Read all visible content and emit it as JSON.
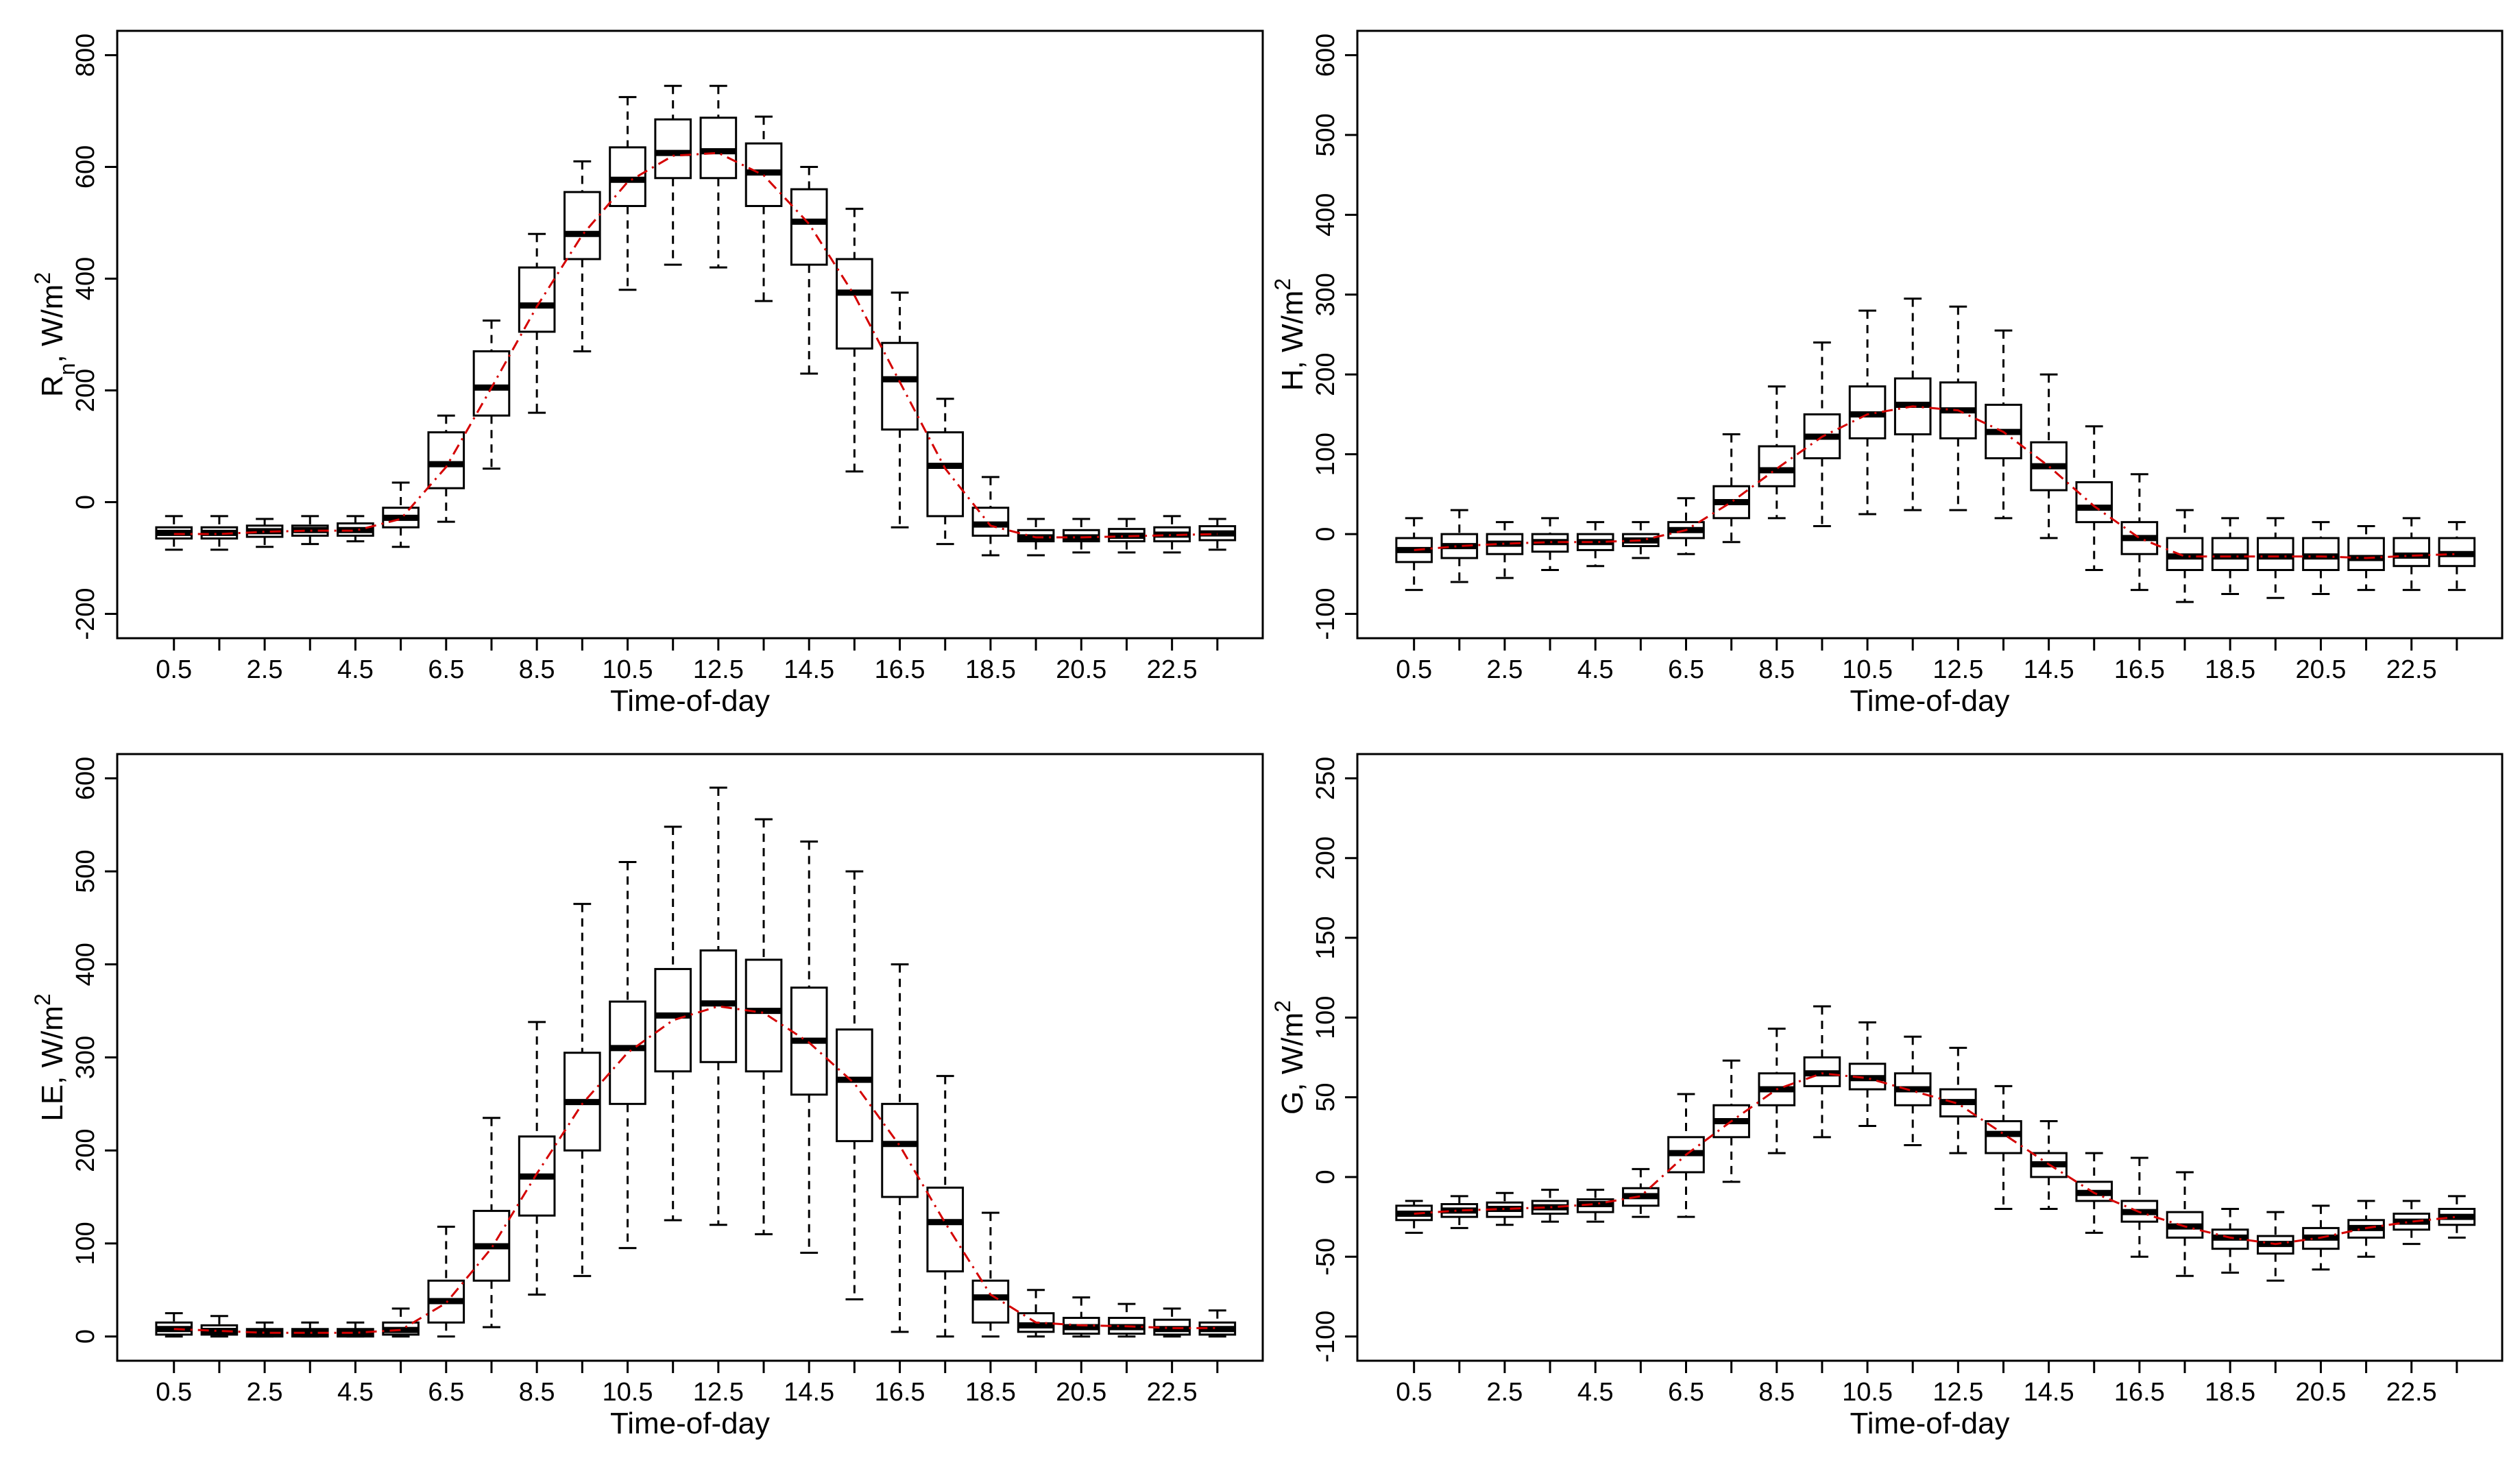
{
  "chart_data": [
    {
      "type": "box",
      "panel": "top-left",
      "xlabel": "Time-of-day",
      "ylabel": "Rn, W/m2",
      "ylabel_parts": {
        "main": "R",
        "sub": "n",
        "unit": ", W/m",
        "sup": "2"
      },
      "ylim": [
        -200,
        800
      ],
      "yticks": [
        -200,
        0,
        200,
        400,
        600,
        800
      ],
      "xticks": [
        0.5,
        2.5,
        4.5,
        6.5,
        8.5,
        10.5,
        12.5,
        14.5,
        16.5,
        18.5,
        20.5,
        22.5
      ],
      "x": [
        0.5,
        1.5,
        2.5,
        3.5,
        4.5,
        5.5,
        6.5,
        7.5,
        8.5,
        9.5,
        10.5,
        11.5,
        12.5,
        13.5,
        14.5,
        15.5,
        16.5,
        17.5,
        18.5,
        19.5,
        20.5,
        21.5,
        22.5,
        23.5
      ],
      "series": [
        {
          "name": "min",
          "values": [
            -85,
            -85,
            -80,
            -75,
            -70,
            -80,
            -35,
            60,
            160,
            270,
            380,
            425,
            420,
            360,
            230,
            55,
            -45,
            -75,
            -95,
            -95,
            -90,
            -90,
            -90,
            -85
          ]
        },
        {
          "name": "q1",
          "values": [
            -65,
            -65,
            -62,
            -60,
            -60,
            -45,
            25,
            155,
            305,
            435,
            530,
            580,
            580,
            530,
            425,
            275,
            130,
            -25,
            -60,
            -70,
            -70,
            -70,
            -70,
            -68
          ]
        },
        {
          "name": "median",
          "values": [
            -55,
            -55,
            -52,
            -50,
            -50,
            -28,
            68,
            205,
            352,
            480,
            577,
            625,
            628,
            590,
            502,
            375,
            220,
            65,
            -40,
            -63,
            -63,
            -60,
            -58,
            -56
          ]
        },
        {
          "name": "q3",
          "values": [
            -45,
            -45,
            -42,
            -42,
            -38,
            -10,
            125,
            270,
            420,
            555,
            635,
            685,
            688,
            642,
            560,
            435,
            285,
            125,
            -10,
            -50,
            -50,
            -48,
            -45,
            -43
          ]
        },
        {
          "name": "max",
          "values": [
            -25,
            -25,
            -30,
            -25,
            -25,
            35,
            155,
            325,
            480,
            610,
            725,
            745,
            745,
            690,
            600,
            525,
            375,
            185,
            45,
            -30,
            -30,
            -30,
            -25,
            -30
          ]
        },
        {
          "name": "mean",
          "values": [
            -57,
            -57,
            -53,
            -51,
            -51,
            -30,
            63,
            205,
            350,
            478,
            573,
            620,
            625,
            585,
            498,
            370,
            215,
            60,
            -42,
            -63,
            -63,
            -61,
            -59,
            -57
          ]
        }
      ]
    },
    {
      "type": "box",
      "panel": "top-right",
      "xlabel": "Time-of-day",
      "ylabel": "H, W/m2",
      "ylabel_parts": {
        "main": "H",
        "sub": "",
        "unit": ", W/m",
        "sup": "2"
      },
      "ylim": [
        -100,
        600
      ],
      "yticks": [
        -100,
        0,
        100,
        200,
        300,
        400,
        500,
        600
      ],
      "xticks": [
        0.5,
        2.5,
        4.5,
        6.5,
        8.5,
        10.5,
        12.5,
        14.5,
        16.5,
        18.5,
        20.5,
        22.5
      ],
      "x": [
        0.5,
        1.5,
        2.5,
        3.5,
        4.5,
        5.5,
        6.5,
        7.5,
        8.5,
        9.5,
        10.5,
        11.5,
        12.5,
        13.5,
        14.5,
        15.5,
        16.5,
        17.5,
        18.5,
        19.5,
        20.5,
        21.5,
        22.5,
        23.5
      ],
      "series": [
        {
          "name": "min",
          "values": [
            -70,
            -60,
            -55,
            -45,
            -40,
            -30,
            -25,
            -10,
            20,
            10,
            25,
            30,
            30,
            20,
            -5,
            -45,
            -70,
            -85,
            -75,
            -80,
            -75,
            -70,
            -70,
            -70
          ]
        },
        {
          "name": "q1",
          "values": [
            -35,
            -30,
            -25,
            -22,
            -20,
            -15,
            -5,
            20,
            60,
            95,
            120,
            125,
            120,
            95,
            55,
            15,
            -25,
            -45,
            -45,
            -45,
            -45,
            -45,
            -40,
            -40
          ]
        },
        {
          "name": "median",
          "values": [
            -20,
            -15,
            -12,
            -10,
            -10,
            -8,
            5,
            40,
            80,
            122,
            150,
            162,
            155,
            128,
            85,
            33,
            -5,
            -28,
            -28,
            -28,
            -28,
            -30,
            -27,
            -25
          ]
        },
        {
          "name": "q3",
          "values": [
            -5,
            0,
            0,
            0,
            0,
            0,
            15,
            60,
            110,
            150,
            185,
            195,
            190,
            162,
            115,
            65,
            15,
            -5,
            -5,
            -5,
            -5,
            -5,
            -5,
            -5
          ]
        },
        {
          "name": "max",
          "values": [
            20,
            30,
            15,
            20,
            15,
            15,
            45,
            125,
            185,
            240,
            280,
            295,
            285,
            255,
            200,
            135,
            75,
            30,
            20,
            20,
            15,
            10,
            20,
            15
          ]
        },
        {
          "name": "mean",
          "values": [
            -20,
            -15,
            -12,
            -10,
            -10,
            -8,
            5,
            40,
            82,
            122,
            150,
            160,
            155,
            128,
            85,
            35,
            -5,
            -28,
            -28,
            -28,
            -28,
            -30,
            -27,
            -25
          ]
        }
      ]
    },
    {
      "type": "box",
      "panel": "bottom-left",
      "xlabel": "Time-of-day",
      "ylabel": "LE, W/m2",
      "ylabel_parts": {
        "main": "LE",
        "sub": "",
        "unit": ", W/m",
        "sup": "2"
      },
      "ylim": [
        0,
        600
      ],
      "yticks": [
        0,
        100,
        200,
        300,
        400,
        500,
        600
      ],
      "xticks": [
        0.5,
        2.5,
        4.5,
        6.5,
        8.5,
        10.5,
        12.5,
        14.5,
        16.5,
        18.5,
        20.5,
        22.5
      ],
      "x": [
        0.5,
        1.5,
        2.5,
        3.5,
        4.5,
        5.5,
        6.5,
        7.5,
        8.5,
        9.5,
        10.5,
        11.5,
        12.5,
        13.5,
        14.5,
        15.5,
        16.5,
        17.5,
        18.5,
        19.5,
        20.5,
        21.5,
        22.5,
        23.5
      ],
      "series": [
        {
          "name": "min",
          "values": [
            0,
            0,
            0,
            0,
            0,
            0,
            0,
            10,
            45,
            65,
            95,
            125,
            120,
            110,
            90,
            40,
            5,
            0,
            0,
            0,
            0,
            0,
            0,
            0
          ]
        },
        {
          "name": "q1",
          "values": [
            2,
            2,
            0,
            0,
            0,
            2,
            15,
            60,
            130,
            200,
            250,
            285,
            295,
            285,
            260,
            210,
            150,
            70,
            15,
            5,
            3,
            3,
            2,
            2
          ]
        },
        {
          "name": "median",
          "values": [
            8,
            6,
            4,
            4,
            4,
            7,
            38,
            97,
            172,
            252,
            310,
            345,
            358,
            350,
            318,
            276,
            207,
            123,
            42,
            12,
            10,
            10,
            8,
            8
          ]
        },
        {
          "name": "q3",
          "values": [
            15,
            12,
            8,
            8,
            8,
            15,
            60,
            135,
            215,
            305,
            360,
            395,
            415,
            405,
            375,
            330,
            250,
            160,
            60,
            25,
            20,
            20,
            18,
            15
          ]
        },
        {
          "name": "max",
          "values": [
            25,
            22,
            15,
            15,
            15,
            30,
            118,
            235,
            338,
            465,
            510,
            548,
            590,
            556,
            532,
            500,
            400,
            280,
            133,
            50,
            42,
            35,
            30,
            28
          ]
        },
        {
          "name": "mean",
          "values": [
            8,
            6,
            4,
            4,
            4,
            7,
            36,
            95,
            175,
            250,
            305,
            340,
            355,
            348,
            316,
            272,
            205,
            122,
            45,
            15,
            12,
            11,
            9,
            9
          ]
        }
      ]
    },
    {
      "type": "box",
      "panel": "bottom-right",
      "xlabel": "Time-of-day",
      "ylabel": "G, W/m2",
      "ylabel_parts": {
        "main": "G",
        "sub": "",
        "unit": ", W/m",
        "sup": "2"
      },
      "ylim": [
        -100,
        250
      ],
      "yticks": [
        -100,
        -50,
        0,
        50,
        100,
        150,
        200,
        250
      ],
      "xticks": [
        0.5,
        2.5,
        4.5,
        6.5,
        8.5,
        10.5,
        12.5,
        14.5,
        16.5,
        18.5,
        20.5,
        22.5
      ],
      "x": [
        0.5,
        1.5,
        2.5,
        3.5,
        4.5,
        5.5,
        6.5,
        7.5,
        8.5,
        9.5,
        10.5,
        11.5,
        12.5,
        13.5,
        14.5,
        15.5,
        16.5,
        17.5,
        18.5,
        19.5,
        20.5,
        21.5,
        22.5,
        23.5
      ],
      "series": [
        {
          "name": "min",
          "values": [
            -35,
            -32,
            -30,
            -28,
            -28,
            -25,
            -25,
            -3,
            15,
            25,
            32,
            20,
            15,
            -20,
            -20,
            -35,
            -50,
            -62,
            -60,
            -65,
            -58,
            -50,
            -42,
            -38
          ]
        },
        {
          "name": "q1",
          "values": [
            -27,
            -25,
            -25,
            -23,
            -22,
            -18,
            3,
            25,
            45,
            57,
            55,
            45,
            38,
            15,
            0,
            -15,
            -28,
            -38,
            -45,
            -48,
            -45,
            -38,
            -33,
            -30
          ]
        },
        {
          "name": "median",
          "values": [
            -23,
            -21,
            -20,
            -19,
            -17,
            -12,
            15,
            35,
            55,
            65,
            62,
            55,
            47,
            27,
            8,
            -10,
            -22,
            -31,
            -38,
            -42,
            -38,
            -32,
            -28,
            -25
          ]
        },
        {
          "name": "q3",
          "values": [
            -18,
            -17,
            -16,
            -15,
            -14,
            -7,
            25,
            45,
            65,
            75,
            71,
            65,
            55,
            35,
            15,
            -3,
            -15,
            -22,
            -33,
            -37,
            -32,
            -27,
            -23,
            -20
          ]
        },
        {
          "name": "max",
          "values": [
            -15,
            -12,
            -10,
            -8,
            -8,
            5,
            52,
            73,
            93,
            107,
            97,
            88,
            81,
            57,
            35,
            15,
            12,
            3,
            -20,
            -22,
            -18,
            -15,
            -15,
            -12
          ]
        },
        {
          "name": "mean",
          "values": [
            -23,
            -21,
            -20,
            -19,
            -17,
            -12,
            14,
            35,
            55,
            65,
            62,
            54,
            46,
            27,
            8,
            -10,
            -22,
            -31,
            -38,
            -42,
            -38,
            -32,
            -28,
            -25
          ]
        }
      ]
    }
  ],
  "style": {
    "box_fill": "#ffffff",
    "line_color": "#000000",
    "trend_color": "#d40000",
    "background": "#ffffff"
  }
}
